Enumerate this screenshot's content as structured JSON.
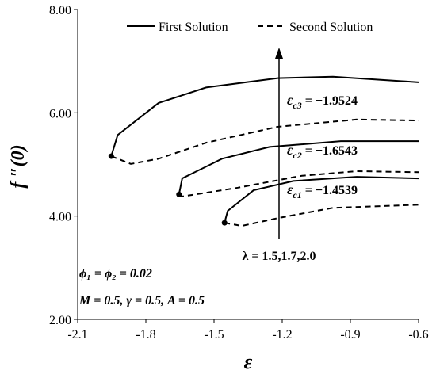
{
  "chart_data": {
    "type": "line",
    "xlabel": "ε",
    "ylabel": "f ″(0)",
    "xlim": [
      -2.1,
      -0.6
    ],
    "xticks": [
      -2.1,
      -1.8,
      -1.5,
      -1.2,
      -0.9,
      -0.6
    ],
    "ylim": [
      2,
      8
    ],
    "yticks": [
      {
        "value": 2,
        "label": "2.00"
      },
      {
        "value": 4,
        "label": "4.00"
      },
      {
        "value": 6,
        "label": "6.00"
      },
      {
        "value": 8,
        "label": "8.00"
      }
    ],
    "color": "#000000",
    "series": [
      {
        "name": "First Solution",
        "dashed": false,
        "curves": [
          {
            "x": [
              -1.4539,
              -1.44,
              -1.326,
              -1.151,
              -0.872,
              -0.6
            ],
            "y": [
              3.87,
              4.1,
              4.5,
              4.68,
              4.76,
              4.73
            ]
          },
          {
            "x": [
              -1.6543,
              -1.64,
              -1.465,
              -1.256,
              -0.942,
              -0.6
            ],
            "y": [
              4.42,
              4.73,
              5.11,
              5.34,
              5.45,
              5.45
            ]
          },
          {
            "x": [
              -1.9524,
              -1.924,
              -1.744,
              -1.535,
              -1.22,
              -0.977,
              -0.6
            ],
            "y": [
              5.16,
              5.57,
              6.19,
              6.49,
              6.67,
              6.7,
              6.59
            ]
          }
        ]
      },
      {
        "name": "Second Solution",
        "dashed": true,
        "curves": [
          {
            "x": [
              -1.4539,
              -1.378,
              -1.22,
              -0.977,
              -0.6
            ],
            "y": [
              3.87,
              3.81,
              3.96,
              4.16,
              4.22
            ]
          },
          {
            "x": [
              -1.6543,
              -1.64,
              -1.395,
              -1.116,
              -0.872,
              -0.6
            ],
            "y": [
              4.42,
              4.38,
              4.55,
              4.78,
              4.87,
              4.85
            ]
          },
          {
            "x": [
              -1.9524,
              -1.866,
              -1.744,
              -1.535,
              -1.22,
              -0.872,
              -0.6
            ],
            "y": [
              5.16,
              5.01,
              5.11,
              5.42,
              5.73,
              5.87,
              5.85
            ]
          }
        ]
      }
    ],
    "critical_points": {
      "x": [
        -1.4539,
        -1.6543,
        -1.9524
      ],
      "y": [
        3.87,
        4.42,
        5.16
      ]
    },
    "annotations": [
      {
        "symbol": "ε",
        "sub": "c1",
        "text": " = −1.4539"
      },
      {
        "symbol": "ε",
        "sub": "c2",
        "text": " = −1.6543"
      },
      {
        "symbol": "ε",
        "sub": "c3",
        "text": " = −1.9524"
      }
    ],
    "lambda_label": "λ = 1.5,1.7,2.0",
    "params": [
      "ϕ₁ = ϕ₂ = 0.02",
      "M = 0.5, γ = 0.5, A = 0.5"
    ]
  }
}
